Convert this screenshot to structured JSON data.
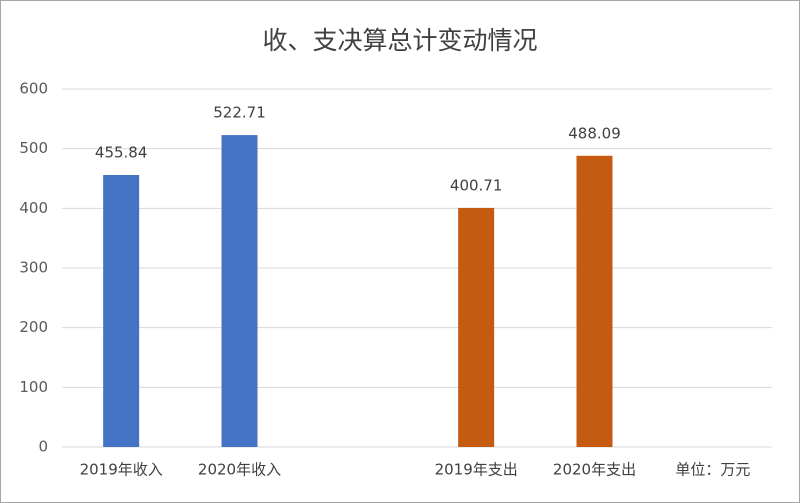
{
  "chart_data": {
    "type": "bar",
    "title": "收、支决算总计变动情况",
    "categories": [
      "2019年收入",
      "2020年收入",
      null,
      "2019年支出",
      "2020年支出"
    ],
    "values": [
      455.84,
      522.71,
      null,
      400.71,
      488.09
    ],
    "colors": [
      "#4472c4",
      "#4472c4",
      null,
      "#c55a11",
      "#c55a11"
    ],
    "unit_note": "单位：万元",
    "ylim": [
      0,
      600
    ],
    "yticks": [
      0,
      100,
      200,
      300,
      400,
      500,
      600
    ],
    "grid": true
  }
}
